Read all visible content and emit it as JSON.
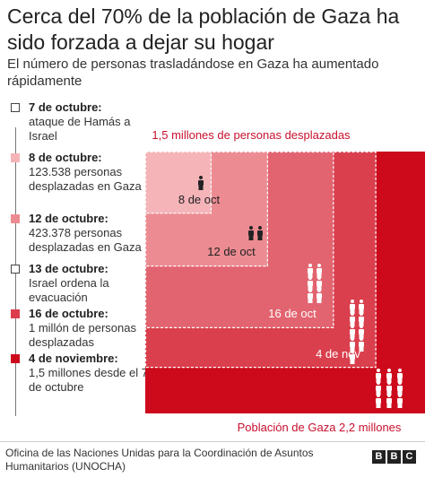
{
  "header": {
    "title": "Cerca del 70% de la población de Gaza ha sido forzada a dejar su hogar",
    "subtitle": "El número de personas trasladándose en Gaza ha aumentado rápidamente"
  },
  "timeline": [
    {
      "date": "7 de octubre:",
      "desc": "ataque de Hamás a Israel",
      "color": "#ffffff"
    },
    {
      "date": "8 de octubre:",
      "desc": "123.538 personas desplazadas en Gaza",
      "color": "#f4b4b8"
    },
    {
      "date": "12 de octubre:",
      "desc": "423.378 personas desplazadas en Gaza",
      "color": "#ec8c92"
    },
    {
      "date": "13 de octubre:",
      "desc": "Israel ordena la evacuación",
      "color": "#ffffff"
    },
    {
      "date": "16 de octubre:",
      "desc": "1 millón de personas desplazadas",
      "color": "#dc3c4c"
    },
    {
      "date": "4 de noviembre:",
      "desc": "1,5 millones desde el 7 de octubre",
      "color": "#cc0a1c"
    }
  ],
  "chart_data": {
    "type": "area",
    "total_label": "Población de Gaza 2,2 millones",
    "displaced_label": "1,5 millones de personas desplazadas",
    "total_value": 2200000,
    "series": [
      {
        "label": "8 de oct",
        "value": 123538,
        "icons": 1,
        "color": "#f4b4b8"
      },
      {
        "label": "12 de oct",
        "value": 423378,
        "icons": 2,
        "color": "#ec8c92"
      },
      {
        "label": "16 de oct",
        "value": 1000000,
        "icons": 6,
        "color": "#e26470"
      },
      {
        "label": "4 de nov",
        "value": 1500000,
        "icons": 9,
        "color": "#da3f4d"
      }
    ],
    "colors": {
      "total": "#cc0a1c",
      "label_red": "#c8102e",
      "text": "#222222"
    }
  },
  "footer": {
    "source": "Oficina de las Naciones Unidas para la Coordinación de Asuntos Humanitarios (UNOCHA)",
    "logo": [
      "B",
      "B",
      "C"
    ]
  }
}
